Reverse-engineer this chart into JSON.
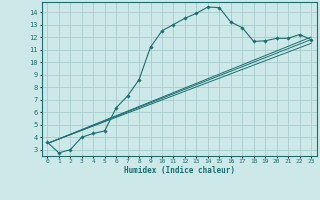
{
  "xlabel": "Humidex (Indice chaleur)",
  "bg_color": "#cce8e8",
  "grid_color": "#aacccc",
  "line_color": "#1a7070",
  "xlim": [
    -0.5,
    23.5
  ],
  "ylim": [
    2.5,
    14.8
  ],
  "xticks": [
    0,
    1,
    2,
    3,
    4,
    5,
    6,
    7,
    8,
    9,
    10,
    11,
    12,
    13,
    14,
    15,
    16,
    17,
    18,
    19,
    20,
    21,
    22,
    23
  ],
  "yticks": [
    3,
    4,
    5,
    6,
    7,
    8,
    9,
    10,
    11,
    12,
    13,
    14
  ],
  "curve1_x": [
    0,
    1,
    2,
    3,
    4,
    5,
    6,
    7,
    8,
    9,
    10,
    11,
    12,
    13,
    14,
    15,
    16,
    17,
    18,
    19,
    20,
    21,
    22,
    23
  ],
  "curve1_y": [
    3.6,
    2.75,
    3.0,
    4.0,
    4.3,
    4.5,
    6.35,
    7.3,
    8.6,
    11.2,
    12.5,
    13.0,
    13.5,
    13.9,
    14.4,
    14.35,
    13.2,
    12.75,
    11.65,
    11.7,
    11.9,
    11.9,
    12.2,
    11.8
  ],
  "curve2_x": [
    0,
    23
  ],
  "curve2_y": [
    3.5,
    12.0
  ],
  "curve3_x": [
    0,
    23
  ],
  "curve3_y": [
    3.5,
    11.5
  ],
  "curve4_x": [
    0,
    23
  ],
  "curve4_y": [
    3.5,
    11.8
  ]
}
